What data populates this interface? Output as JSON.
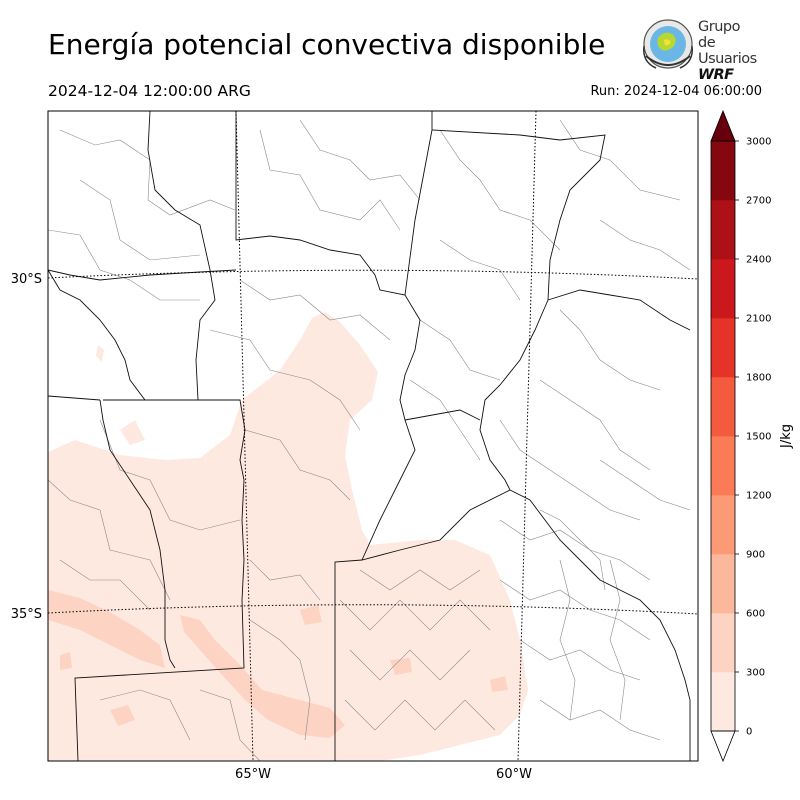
{
  "header": {
    "title": "Energía potencial convectiva disponible",
    "valid_time": "2024-12-04 12:00:00 ARG",
    "run_time": "Run: 2024-12-04 06:00:00"
  },
  "logo": {
    "line1": "Grupo de",
    "line2": "Usuarios",
    "line3": "WRF"
  },
  "map": {
    "lat_labels": [
      "30°S",
      "35°S"
    ],
    "lon_labels": [
      "65°W",
      "60°W"
    ],
    "variable": "CAPE"
  },
  "colorbar": {
    "unit_label": "J/kg",
    "ticks": [
      "0",
      "300",
      "600",
      "900",
      "1200",
      "1500",
      "1800",
      "2100",
      "2400",
      "2700",
      "3000"
    ],
    "levels": [
      0,
      300,
      600,
      900,
      1200,
      1500,
      1800,
      2100,
      2400,
      2700,
      3000
    ],
    "colors": [
      "#fee9e1",
      "#fdd4c3",
      "#fcb89b",
      "#fc9a76",
      "#fb7b56",
      "#f45a3e",
      "#e63328",
      "#cb181d",
      "#ad1116",
      "#85070f"
    ],
    "extend_low_color": "#ffffff",
    "extend_high_color": "#67000d"
  },
  "colors": {
    "cape_light": "#fee9e1",
    "cape_medium": "#fdd4c3",
    "border": "#000000",
    "department": "#888888"
  }
}
